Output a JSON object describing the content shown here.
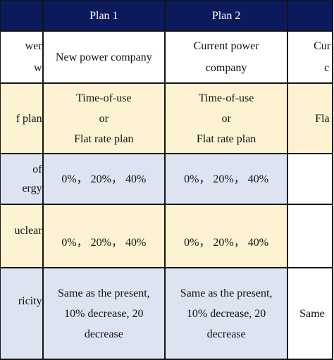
{
  "header": {
    "col0": "",
    "plan1": "Plan 1",
    "plan2": "Plan 2",
    "col3": ""
  },
  "rows": {
    "company": {
      "label_lines": [
        "wer",
        "w"
      ],
      "plan1_lines": [
        "New power company"
      ],
      "plan2_lines": [
        "Current power",
        "company"
      ],
      "col3_lines": [
        "Cur",
        "c"
      ]
    },
    "plan": {
      "label_lines": [
        "f plan"
      ],
      "plan1_lines": [
        "Time-of-use",
        "or",
        "Flat rate plan"
      ],
      "plan2_lines": [
        "Time-of-use",
        "or",
        "Flat rate plan"
      ],
      "col3_lines": [
        "Fla"
      ]
    },
    "renewable": {
      "label_lines": [
        "of",
        "ergy"
      ],
      "plan1_lines": [
        "0%， 20%， 40%"
      ],
      "plan2_lines": [
        "0%， 20%， 40%"
      ]
    },
    "nuclear": {
      "label_lines": [
        "uclear"
      ],
      "plan1_lines": [
        "0%， 20%， 40%"
      ],
      "plan2_lines": [
        "0%， 20%， 40%"
      ]
    },
    "electricity": {
      "label_lines": [
        "ricity"
      ],
      "plan1_lines": [
        "Same as the present,",
        "10% decrease, 20",
        "decrease"
      ],
      "plan2_lines": [
        "Same as the present,",
        "10% decrease, 20",
        "decrease"
      ],
      "col3_lines": [
        "Same"
      ]
    }
  },
  "colors": {
    "header_bg": "#0a1a5c",
    "cream_row": "#fdf3d2",
    "blue_row": "#dce4f2",
    "border": "#141414"
  }
}
